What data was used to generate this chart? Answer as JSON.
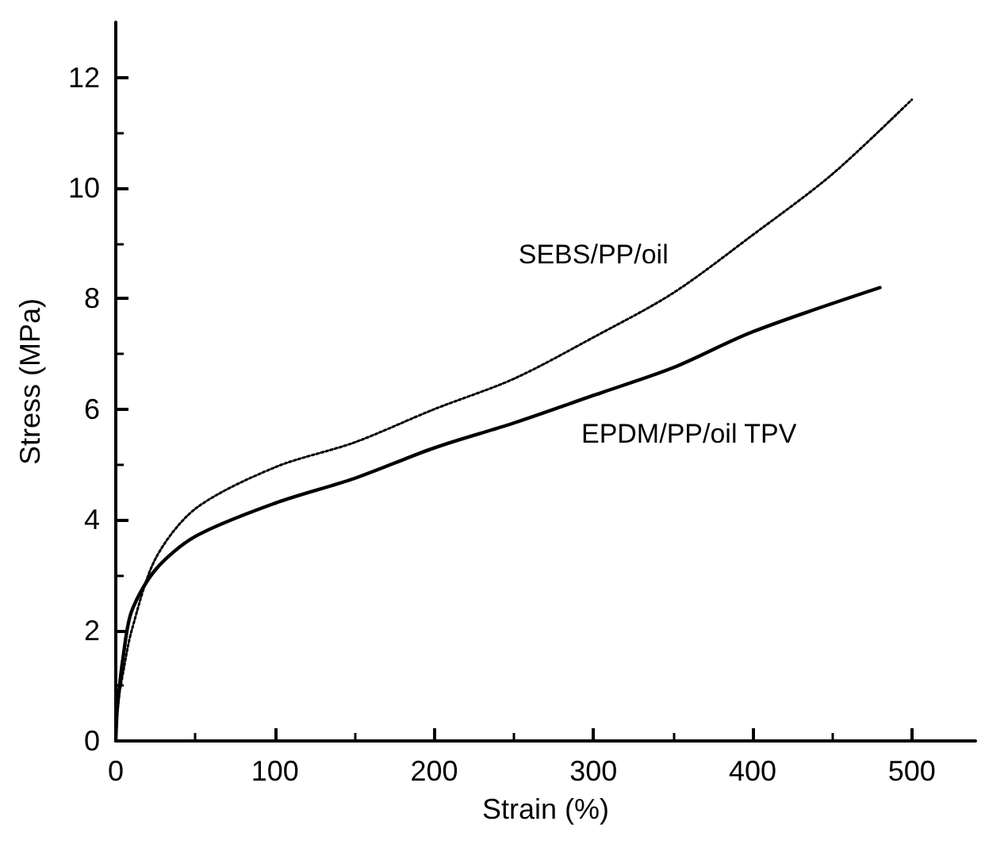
{
  "chart_data": {
    "type": "line",
    "xlabel": "Strain (%)",
    "ylabel": "Stress (MPa)",
    "xlim": [
      0,
      540
    ],
    "xticks": [
      0,
      100,
      200,
      300,
      400,
      500
    ],
    "ylim": [
      0,
      13
    ],
    "yticks": [
      0,
      2,
      4,
      6,
      8,
      10,
      12
    ],
    "grid": false,
    "legend": false,
    "marker": "none",
    "series": [
      {
        "name": "SEBS/PP/oil",
        "color": "#000000",
        "line_style": "dotted",
        "x": [
          0,
          1,
          5,
          10,
          25,
          50,
          100,
          150,
          200,
          250,
          300,
          350,
          400,
          450,
          500
        ],
        "values": [
          0,
          0.6,
          1.3,
          2.0,
          3.3,
          4.2,
          4.95,
          5.4,
          6.0,
          6.55,
          7.3,
          8.1,
          9.15,
          10.25,
          11.6
        ]
      },
      {
        "name": "EPDM/PP/oil TPV",
        "color": "#000000",
        "line_style": "solid",
        "x": [
          0,
          1,
          5,
          10,
          25,
          50,
          100,
          150,
          200,
          250,
          300,
          350,
          400,
          480
        ],
        "values": [
          0,
          0.6,
          1.6,
          2.35,
          3.1,
          3.7,
          4.3,
          4.75,
          5.3,
          5.75,
          6.25,
          6.75,
          7.4,
          8.2
        ]
      }
    ]
  }
}
